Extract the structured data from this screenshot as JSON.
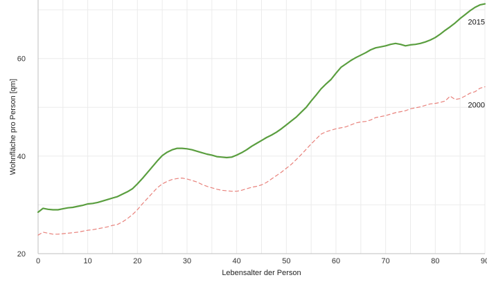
{
  "chart_data": {
    "type": "line",
    "xlabel": "Lebensalter der Person",
    "ylabel": "Wohnfläche pro Person [qm]",
    "xlim": [
      0,
      90
    ],
    "ylim": [
      20,
      72
    ],
    "x_ticks": [
      "0",
      "10",
      "20",
      "30",
      "40",
      "50",
      "60",
      "70",
      "80",
      "90"
    ],
    "y_ticks": [
      "20",
      "40",
      "60"
    ],
    "grid": true,
    "series": [
      {
        "name": "2015",
        "color": "#5a9e3f",
        "style": "solid",
        "x": [
          0,
          1,
          2,
          3,
          4,
          5,
          6,
          7,
          8,
          9,
          10,
          11,
          12,
          13,
          14,
          15,
          16,
          17,
          18,
          19,
          20,
          21,
          22,
          23,
          24,
          25,
          26,
          27,
          28,
          29,
          30,
          31,
          32,
          33,
          34,
          35,
          36,
          37,
          38,
          39,
          40,
          41,
          42,
          43,
          44,
          45,
          46,
          47,
          48,
          49,
          50,
          51,
          52,
          53,
          54,
          55,
          56,
          57,
          58,
          59,
          60,
          61,
          62,
          63,
          64,
          65,
          66,
          67,
          68,
          69,
          70,
          71,
          72,
          73,
          74,
          75,
          76,
          77,
          78,
          79,
          80,
          81,
          82,
          83,
          84,
          85,
          86,
          87,
          88,
          89,
          90
        ],
        "values": [
          28.5,
          29.3,
          29.1,
          29.0,
          29.0,
          29.2,
          29.4,
          29.5,
          29.7,
          29.9,
          30.2,
          30.3,
          30.5,
          30.8,
          31.1,
          31.4,
          31.7,
          32.2,
          32.7,
          33.3,
          34.3,
          35.4,
          36.6,
          37.8,
          39.0,
          40.1,
          40.8,
          41.3,
          41.6,
          41.6,
          41.5,
          41.3,
          41.0,
          40.7,
          40.4,
          40.2,
          39.9,
          39.8,
          39.7,
          39.8,
          40.2,
          40.7,
          41.3,
          42.0,
          42.6,
          43.2,
          43.8,
          44.3,
          44.9,
          45.6,
          46.4,
          47.2,
          48.0,
          49.0,
          50.0,
          51.3,
          52.5,
          53.8,
          54.8,
          55.7,
          57.0,
          58.2,
          58.9,
          59.6,
          60.2,
          60.7,
          61.2,
          61.8,
          62.2,
          62.4,
          62.6,
          62.9,
          63.1,
          62.9,
          62.6,
          62.8,
          62.9,
          63.1,
          63.4,
          63.8,
          64.3,
          65.0,
          65.8,
          66.5,
          67.3,
          68.2,
          69.0,
          69.8,
          70.5,
          71.0,
          71.2
        ]
      },
      {
        "name": "2000",
        "color": "#e8807a",
        "style": "dashed",
        "x": [
          0,
          1,
          2,
          3,
          4,
          5,
          6,
          7,
          8,
          9,
          10,
          11,
          12,
          13,
          14,
          15,
          16,
          17,
          18,
          19,
          20,
          21,
          22,
          23,
          24,
          25,
          26,
          27,
          28,
          29,
          30,
          31,
          32,
          33,
          34,
          35,
          36,
          37,
          38,
          39,
          40,
          41,
          42,
          43,
          44,
          45,
          46,
          47,
          48,
          49,
          50,
          51,
          52,
          53,
          54,
          55,
          56,
          57,
          58,
          59,
          60,
          61,
          62,
          63,
          64,
          65,
          66,
          67,
          68,
          69,
          70,
          71,
          72,
          73,
          74,
          75,
          76,
          77,
          78,
          79,
          80,
          81,
          82,
          83,
          84,
          85,
          86,
          87,
          88,
          89,
          90
        ],
        "values": [
          23.8,
          24.4,
          24.2,
          24.0,
          24.0,
          24.1,
          24.2,
          24.3,
          24.4,
          24.6,
          24.8,
          24.9,
          25.1,
          25.3,
          25.5,
          25.8,
          26.0,
          26.5,
          27.2,
          28.0,
          29.0,
          30.2,
          31.3,
          32.4,
          33.5,
          34.3,
          34.8,
          35.2,
          35.4,
          35.5,
          35.3,
          35.0,
          34.7,
          34.2,
          33.8,
          33.5,
          33.2,
          33.0,
          32.9,
          32.8,
          32.8,
          33.0,
          33.3,
          33.6,
          33.8,
          34.1,
          34.6,
          35.3,
          36.0,
          36.7,
          37.5,
          38.3,
          39.3,
          40.3,
          41.4,
          42.5,
          43.5,
          44.5,
          45.0,
          45.3,
          45.6,
          45.8,
          46.0,
          46.4,
          46.8,
          47.0,
          47.1,
          47.4,
          47.9,
          48.1,
          48.3,
          48.6,
          48.9,
          49.1,
          49.3,
          49.7,
          49.9,
          50.1,
          50.4,
          50.7,
          50.8,
          51.0,
          51.3,
          52.3,
          51.6,
          51.8,
          52.3,
          52.9,
          53.2,
          53.9,
          54.2
        ]
      }
    ]
  }
}
